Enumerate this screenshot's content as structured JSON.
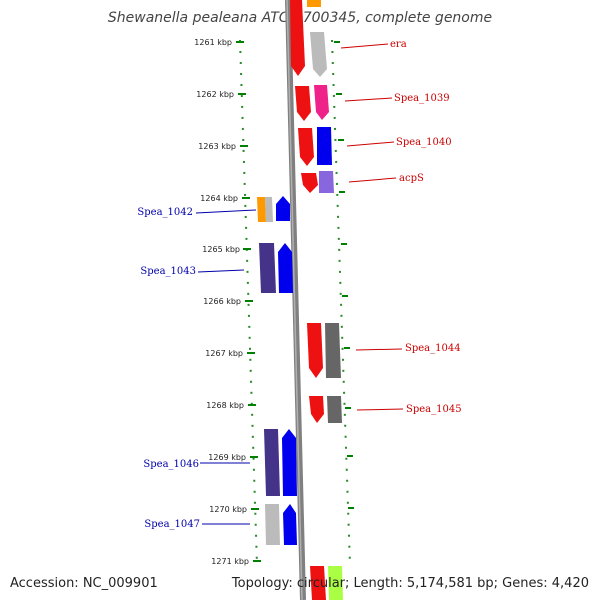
{
  "title": "Shewanella pealeana ATCC 700345, complete genome",
  "footer": {
    "accession": "Accession: NC_009901",
    "topology": "Topology: circular; Length: 5,174,581 bp; Genes: 4,420"
  },
  "scale": {
    "unit_label": "kbp",
    "ticks": [
      "1261 kbp",
      "1262 kbp",
      "1263 kbp",
      "1264 kbp",
      "1265 kbp",
      "1266 kbp",
      "1267 kbp",
      "1268 kbp",
      "1269 kbp",
      "1270 kbp",
      "1271 kbp"
    ]
  },
  "colors": {
    "plus_strand_label": "#cc0000",
    "minus_strand_label": "#0000aa",
    "backbone": "#808080",
    "tick": "#008000"
  },
  "labels": [
    {
      "text": "era",
      "strand": "plus"
    },
    {
      "text": "Spea_1039",
      "strand": "plus"
    },
    {
      "text": "Spea_1040",
      "strand": "plus"
    },
    {
      "text": "acpS",
      "strand": "plus"
    },
    {
      "text": "Spea_1042",
      "strand": "minus"
    },
    {
      "text": "Spea_1043",
      "strand": "minus"
    },
    {
      "text": "Spea_1044",
      "strand": "plus"
    },
    {
      "text": "Spea_1045",
      "strand": "plus"
    },
    {
      "text": "Spea_1046",
      "strand": "minus"
    },
    {
      "text": "Spea_1047",
      "strand": "minus"
    }
  ]
}
